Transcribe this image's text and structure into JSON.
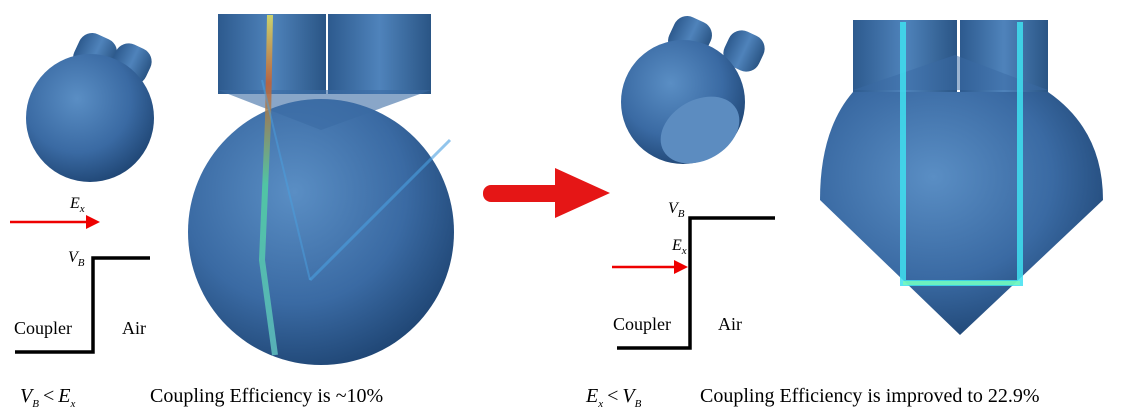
{
  "left": {
    "energy_label": {
      "main": "E",
      "sub": "x"
    },
    "barrier_label": {
      "main": "V",
      "sub": "B"
    },
    "region_left": "Coupler",
    "region_right": "Air",
    "condition": {
      "a": "V",
      "a_sub": "B",
      "op": "<",
      "b": "E",
      "b_sub": "x"
    },
    "caption": "Coupling Efficiency is ~10%"
  },
  "right": {
    "energy_label": {
      "main": "E",
      "sub": "x"
    },
    "barrier_label": {
      "main": "V",
      "sub": "B"
    },
    "region_left": "Coupler",
    "region_right": "Air",
    "condition": {
      "a": "E",
      "a_sub": "x",
      "op": "<",
      "b": "V",
      "b_sub": "B"
    },
    "caption": "Coupling Efficiency is improved to 22.9%"
  }
}
